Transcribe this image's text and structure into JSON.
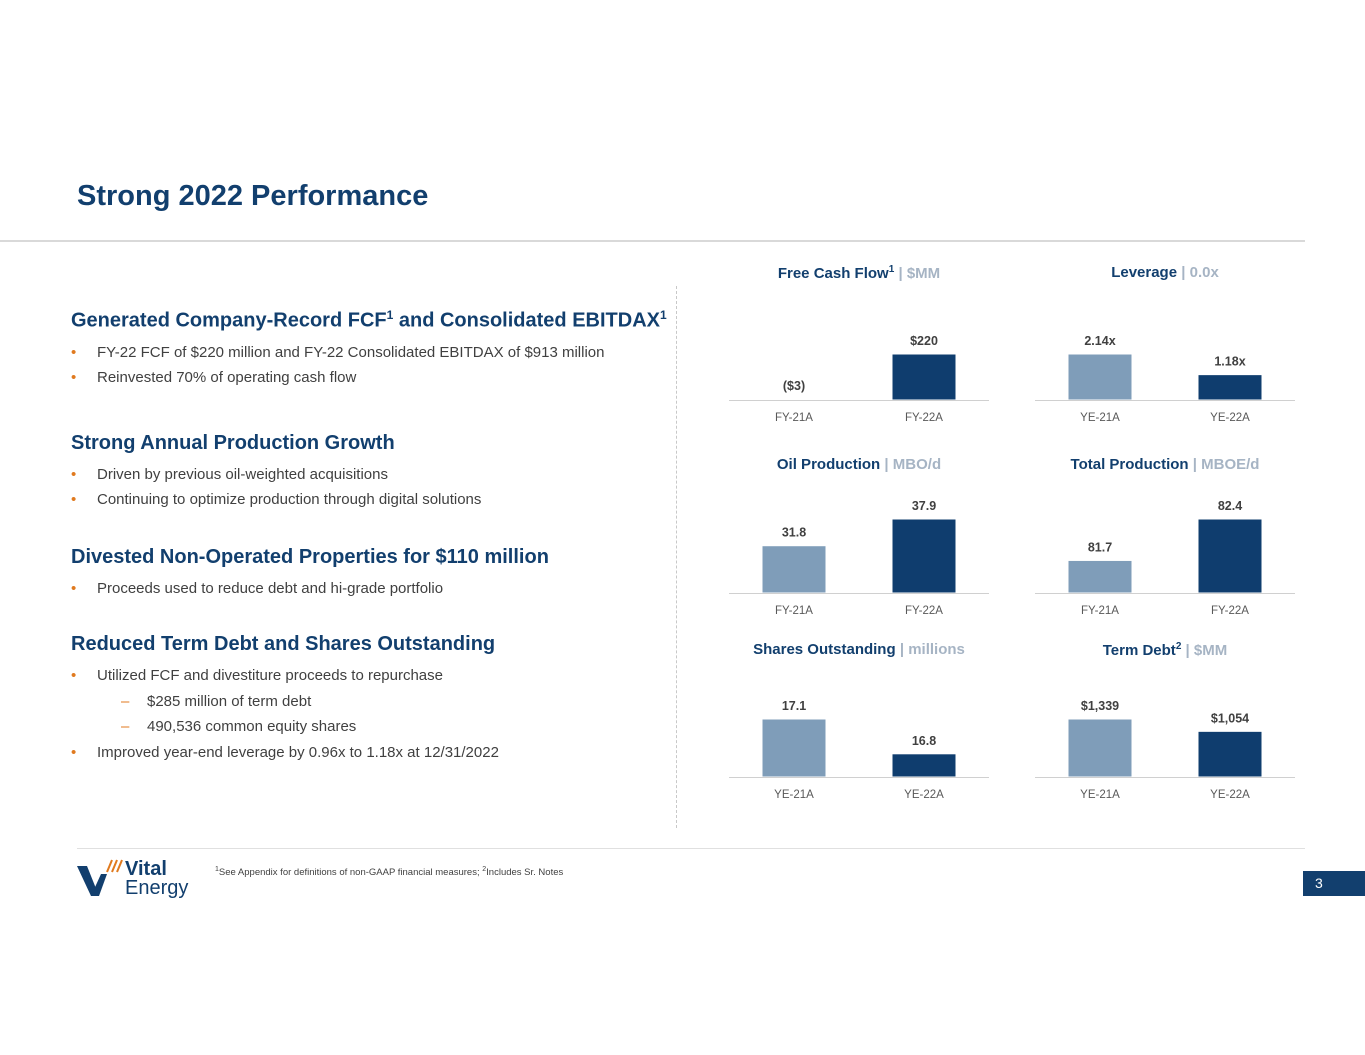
{
  "title": "Strong 2022 Performance",
  "sections": [
    {
      "heading": "Generated Company-Record FCF",
      "heading_sup1": "1",
      "heading_mid": " and Consolidated EBITDAX",
      "heading_sup2": "1",
      "bullets": [
        "FY-22 FCF of $220 million and FY-22 Consolidated EBITDAX of $913 million",
        "Reinvested 70% of operating cash flow"
      ]
    },
    {
      "heading": "Strong Annual Production Growth",
      "bullets": [
        "Driven by previous oil-weighted acquisitions",
        "Continuing to optimize production through digital solutions"
      ]
    },
    {
      "heading": "Divested Non-Operated Properties for $110 million",
      "bullets": [
        "Proceeds used to reduce debt and hi-grade portfolio"
      ]
    },
    {
      "heading": "Reduced Term Debt and Shares Outstanding",
      "bullets": [
        "Utilized FCF and divestiture proceeds to repurchase"
      ],
      "sub_bullets": [
        "$285 million of term debt",
        "490,536 common equity shares"
      ],
      "bullets_after": [
        "Improved year-end leverage by 0.96x to 1.18x at 12/31/2022"
      ]
    }
  ],
  "colors": {
    "prior": "#7f9db9",
    "current": "#0f3d6e",
    "accent": "#e07a1f"
  },
  "chart_data": [
    {
      "type": "bar",
      "title": "Free Cash Flow",
      "title_sup": "1",
      "unit": "$MM",
      "categories": [
        "FY-21A",
        "FY-22A"
      ],
      "values": [
        -3,
        220
      ],
      "labels": [
        "($3)",
        "$220"
      ],
      "ylim": [
        0,
        220
      ]
    },
    {
      "type": "bar",
      "title": "Leverage",
      "unit": "0.0x",
      "categories": [
        "YE-21A",
        "YE-22A"
      ],
      "values": [
        2.14,
        1.18
      ],
      "labels": [
        "2.14x",
        "1.18x"
      ],
      "ylim": [
        0,
        2.14
      ]
    },
    {
      "type": "bar",
      "title": "Oil Production",
      "unit": "MBO/d",
      "categories": [
        "FY-21A",
        "FY-22A"
      ],
      "values": [
        31.8,
        37.9
      ],
      "labels": [
        "31.8",
        "37.9"
      ],
      "ylim": [
        21.0,
        37.9
      ]
    },
    {
      "type": "bar",
      "title": "Total Production",
      "unit": "MBOE/d",
      "categories": [
        "FY-21A",
        "FY-22A"
      ],
      "values": [
        81.7,
        82.4
      ],
      "labels": [
        "81.7",
        "82.4"
      ],
      "ylim": [
        81.15,
        82.4
      ]
    },
    {
      "type": "bar",
      "title": "Shares Outstanding",
      "unit": "millions",
      "categories": [
        "YE-21A",
        "YE-22A"
      ],
      "values": [
        17.1,
        16.8
      ],
      "labels": [
        "17.1",
        "16.8"
      ],
      "ylim": [
        16.6,
        17.1
      ]
    },
    {
      "type": "bar",
      "title": "Term Debt",
      "title_sup": "2",
      "unit": "$MM",
      "categories": [
        "YE-21A",
        "YE-22A"
      ],
      "values": [
        1339,
        1054
      ],
      "labels": [
        "$1,339",
        "$1,054"
      ],
      "ylim": [
        0,
        1339
      ]
    }
  ],
  "logo": {
    "line1": "Vital",
    "line2": "Energy"
  },
  "footnote": {
    "sup1": "1",
    "text1": "See Appendix for definitions of non-GAAP financial measures; ",
    "sup2": "2",
    "text2": "Includes Sr. Notes"
  },
  "page_number": "3"
}
